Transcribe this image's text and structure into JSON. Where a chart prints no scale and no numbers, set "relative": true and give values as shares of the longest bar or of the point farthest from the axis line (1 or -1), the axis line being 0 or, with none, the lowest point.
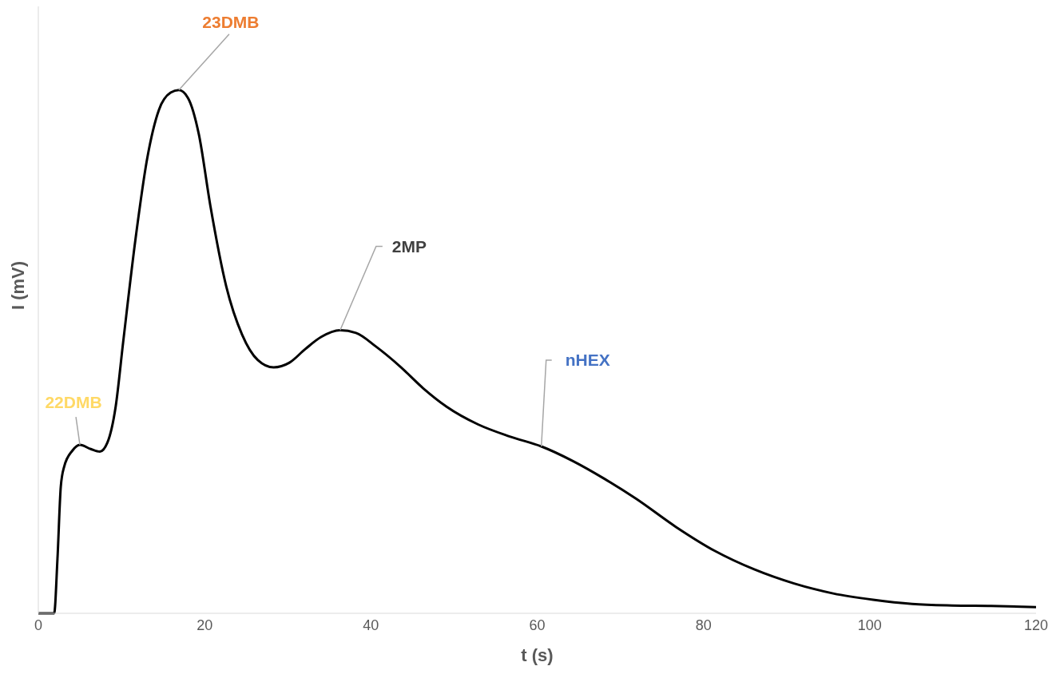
{
  "chart_data": {
    "type": "line",
    "relative": true,
    "xlabel": "t (s)",
    "ylabel": "I (mV)",
    "xlim": [
      0,
      120
    ],
    "xticks": [
      0,
      20,
      40,
      60,
      80,
      100,
      120
    ],
    "grid": false,
    "series": [
      {
        "color": "#000000",
        "x": [
          0,
          1.9,
          2.3,
          2.7,
          3.1,
          4.1,
          5.0,
          6.3,
          7.4,
          8.3,
          9.3,
          10.2,
          11.7,
          13.1,
          14.5,
          15.9,
          16.9,
          18.0,
          19.3,
          20.7,
          22.6,
          24.5,
          26.4,
          28.3,
          30.2,
          32.1,
          34.0,
          36.3,
          38.2,
          40.6,
          43.5,
          46.3,
          49.1,
          52.9,
          56.7,
          60.5,
          64.3,
          68.1,
          71.9,
          76.7,
          81.4,
          86.1,
          90.9,
          95.6,
          100.4,
          105.1,
          109.9,
          114.6,
          120
        ],
        "values": [
          0,
          0,
          0.104,
          0.242,
          0.28,
          0.311,
          0.322,
          0.314,
          0.309,
          0.326,
          0.395,
          0.518,
          0.717,
          0.87,
          0.962,
          0.995,
          1,
          0.985,
          0.916,
          0.778,
          0.625,
          0.533,
          0.484,
          0.47,
          0.479,
          0.505,
          0.528,
          0.541,
          0.536,
          0.51,
          0.472,
          0.43,
          0.395,
          0.361,
          0.338,
          0.319,
          0.291,
          0.257,
          0.219,
          0.165,
          0.119,
          0.084,
          0.057,
          0.038,
          0.026,
          0.018,
          0.015,
          0.014,
          0.012
        ]
      }
    ],
    "annotations": [
      {
        "text": "22DMB",
        "x": 5.0,
        "y": 0.322
      },
      {
        "text": "23DMB",
        "x": 16.9,
        "y": 1
      },
      {
        "text": "2MP",
        "x": 36.3,
        "y": 0.541
      },
      {
        "text": "nHEX",
        "x": 60.5,
        "y": 0.319
      }
    ]
  }
}
